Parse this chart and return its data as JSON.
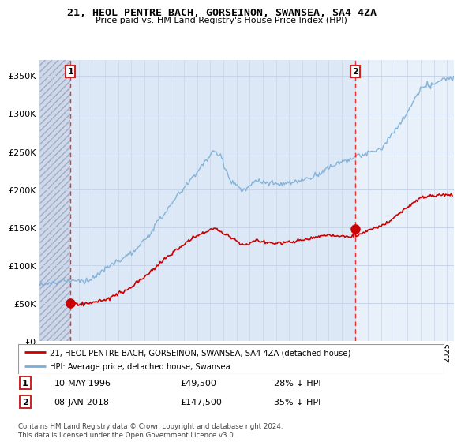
{
  "title": "21, HEOL PENTRE BACH, GORSEINON, SWANSEA, SA4 4ZA",
  "subtitle": "Price paid vs. HM Land Registry's House Price Index (HPI)",
  "legend_line1": "21, HEOL PENTRE BACH, GORSEINON, SWANSEA, SA4 4ZA (detached house)",
  "legend_line2": "HPI: Average price, detached house, Swansea",
  "transaction1_date": "10-MAY-1996",
  "transaction1_price": "£49,500",
  "transaction1_hpi": "28% ↓ HPI",
  "transaction1_year": 1996.37,
  "transaction1_value": 49500,
  "transaction2_date": "08-JAN-2018",
  "transaction2_price": "£147,500",
  "transaction2_hpi": "35% ↓ HPI",
  "transaction2_year": 2018.03,
  "transaction2_value": 147500,
  "footnote": "Contains HM Land Registry data © Crown copyright and database right 2024.\nThis data is licensed under the Open Government Licence v3.0.",
  "xmin": 1994,
  "xmax": 2025.5,
  "ymin": 0,
  "ymax": 370000,
  "red_line_color": "#cc0000",
  "blue_line_color": "#7aaed6",
  "background_color": "#e8f0fa",
  "hatch_color": "#b8c8dc",
  "grid_color": "#c8d4e8",
  "marker_color": "#cc0000",
  "vline_color": "#ee3333"
}
